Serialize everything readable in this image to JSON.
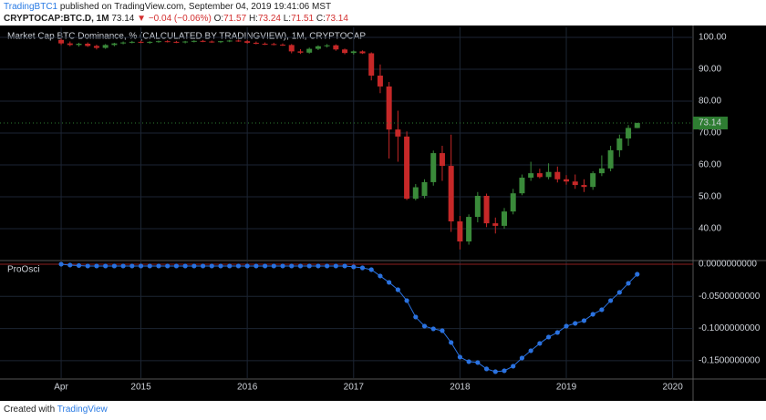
{
  "header": {
    "author": "TradingBTC1",
    "byline": "published on TradingView.com, September 04, 2019 19:41:06 MST",
    "symbol": "CRYPTOCAP:BTC.D, 1M",
    "change": "▼ −0.04 (−0.06%)",
    "open_label": "O:",
    "high_label": "H:",
    "low_label": "L:",
    "close_label": "C:"
  },
  "footer": {
    "created": "Created with",
    "brand": "TradingView"
  },
  "chart_data": [
    {
      "type": "candlestick",
      "title": "Market Cap BTC Dominance, % (CALCULATED BY TRADINGVIEW), 1M, CRYPTOCAP",
      "open": [
        99.2,
        98.1,
        97.6,
        98.0,
        97.3,
        96.7,
        97.6,
        98.1,
        98.4,
        98.6,
        98.4,
        98.6,
        98.8,
        98.6,
        98.5,
        98.7,
        98.9,
        98.7,
        98.5,
        98.8,
        99.0,
        98.8,
        98.3,
        98.0,
        97.9,
        97.7,
        97.6,
        95.6,
        95.2,
        96.4,
        97.2,
        97.5,
        96.2,
        95.1,
        95.6,
        95.0,
        88.0,
        84.6,
        71.1,
        68.9,
        49.4,
        50.3,
        54.6,
        63.7,
        59.7,
        42.3,
        36.0,
        43.7,
        50.3,
        41.7,
        40.9,
        45.4,
        51.1,
        56.0,
        57.4,
        56.2,
        57.8,
        55.5,
        54.8,
        53.7,
        53.1,
        57.4,
        58.9,
        64.6,
        68.3,
        71.57
      ],
      "high": [
        99.6,
        98.7,
        98.3,
        98.4,
        97.7,
        97.9,
        98.3,
        98.7,
        98.9,
        99.0,
        98.8,
        99.0,
        99.1,
        98.9,
        98.9,
        99.1,
        99.2,
        99.0,
        98.9,
        99.2,
        99.3,
        99.2,
        98.7,
        98.4,
        98.3,
        98.1,
        97.9,
        96.3,
        96.8,
        97.5,
        97.9,
        97.8,
        96.5,
        95.9,
        95.9,
        95.3,
        91.5,
        86.0,
        77.0,
        70.5,
        54.0,
        55.5,
        64.5,
        66.0,
        69.5,
        44.0,
        44.5,
        51.5,
        51.0,
        43.5,
        46.5,
        52.5,
        57.0,
        61.0,
        58.8,
        60.5,
        59.5,
        56.8,
        57.0,
        55.5,
        58.0,
        63.0,
        66.0,
        69.5,
        72.5,
        73.24
      ],
      "low": [
        97.6,
        97.2,
        97.1,
        97.0,
        96.2,
        96.4,
        97.2,
        97.8,
        98.1,
        98.2,
        98.0,
        98.3,
        98.4,
        98.2,
        98.1,
        98.4,
        98.5,
        98.3,
        98.2,
        98.5,
        98.6,
        98.0,
        97.8,
        97.6,
        97.5,
        97.3,
        95.0,
        94.8,
        94.9,
        96.0,
        96.8,
        95.8,
        94.7,
        94.6,
        94.8,
        86.5,
        82.5,
        62.0,
        61.0,
        49.0,
        48.9,
        49.5,
        53.5,
        55.0,
        39.0,
        33.5,
        35.0,
        42.0,
        40.5,
        38.5,
        40.0,
        44.5,
        50.5,
        55.0,
        55.8,
        55.5,
        54.5,
        53.8,
        52.5,
        51.5,
        52.2,
        56.5,
        58.0,
        62.5,
        66.0,
        71.51
      ],
      "close": [
        98.1,
        97.6,
        98.0,
        97.3,
        96.7,
        97.6,
        98.1,
        98.4,
        98.6,
        98.4,
        98.6,
        98.8,
        98.6,
        98.5,
        98.7,
        98.9,
        98.7,
        98.5,
        98.8,
        99.0,
        98.8,
        98.3,
        98.0,
        97.9,
        97.7,
        97.6,
        95.6,
        95.2,
        96.4,
        97.2,
        97.5,
        96.2,
        95.1,
        95.6,
        95.0,
        88.0,
        84.6,
        71.1,
        68.9,
        49.4,
        53.0,
        54.6,
        63.7,
        59.7,
        42.3,
        36.0,
        43.7,
        50.3,
        41.7,
        40.9,
        45.4,
        51.1,
        56.0,
        57.4,
        56.2,
        57.8,
        55.5,
        54.8,
        53.7,
        53.1,
        57.4,
        58.9,
        64.6,
        68.3,
        71.6,
        73.14
      ],
      "up_color": "#3a8a3a",
      "down_color": "#c62828",
      "last_price_color": "#2e7d32",
      "ylim": [
        30.3,
        103.14
      ],
      "yticks": [
        {
          "value": 100,
          "label": "100.00"
        },
        {
          "value": 90,
          "label": "90.00"
        },
        {
          "value": 80,
          "label": "80.00"
        },
        {
          "value": 70,
          "label": "70.00"
        },
        {
          "value": 60,
          "label": "60.00"
        },
        {
          "value": 50,
          "label": "50.00"
        },
        {
          "value": 40,
          "label": "40.00"
        }
      ],
      "xlim": [
        -6.9,
        71.3
      ],
      "grid": true
    },
    {
      "type": "line",
      "title": "ProOsci",
      "color": "#2a72e0",
      "markers": true,
      "values": [
        0.0,
        -0.0014,
        -0.0021,
        -0.0028,
        -0.0028,
        -0.0028,
        -0.0028,
        -0.0028,
        -0.0028,
        -0.0028,
        -0.0028,
        -0.0028,
        -0.0028,
        -0.0028,
        -0.0028,
        -0.0028,
        -0.0028,
        -0.0028,
        -0.0028,
        -0.0028,
        -0.0028,
        -0.0028,
        -0.0028,
        -0.0028,
        -0.0028,
        -0.0028,
        -0.0028,
        -0.0028,
        -0.0028,
        -0.0028,
        -0.0028,
        -0.0028,
        -0.0028,
        -0.0042,
        -0.0057,
        -0.0085,
        -0.0184,
        -0.0283,
        -0.0397,
        -0.0566,
        -0.0821,
        -0.0963,
        -0.1005,
        -0.1034,
        -0.1218,
        -0.1444,
        -0.1515,
        -0.1529,
        -0.1628,
        -0.1671,
        -0.1657,
        -0.1586,
        -0.1459,
        -0.1345,
        -0.1232,
        -0.1133,
        -0.1062,
        -0.0963,
        -0.092,
        -0.0878,
        -0.0779,
        -0.0708,
        -0.0566,
        -0.0439,
        -0.0297,
        -0.0156
      ],
      "hlines": [
        {
          "value": 0,
          "color": "#8e2020"
        }
      ],
      "ylim": [
        -0.1771,
        0.0042
      ],
      "yticks": [
        {
          "value": 0,
          "label": "0.0000000000"
        },
        {
          "value": -0.05,
          "label": "-0.0500000000"
        },
        {
          "value": -0.1,
          "label": "-0.1000000000"
        },
        {
          "value": -0.15,
          "label": "-0.1500000000"
        }
      ],
      "xlim": [
        -6.9,
        71.3
      ],
      "xticks": [
        {
          "value": 0,
          "label": "Apr"
        },
        {
          "value": 9,
          "label": "2015"
        },
        {
          "value": 21,
          "label": "2016"
        },
        {
          "value": 33,
          "label": "2017"
        },
        {
          "value": 45,
          "label": "2018"
        },
        {
          "value": 57,
          "label": "2019"
        },
        {
          "value": 69,
          "label": "2020"
        }
      ],
      "grid": true
    }
  ]
}
